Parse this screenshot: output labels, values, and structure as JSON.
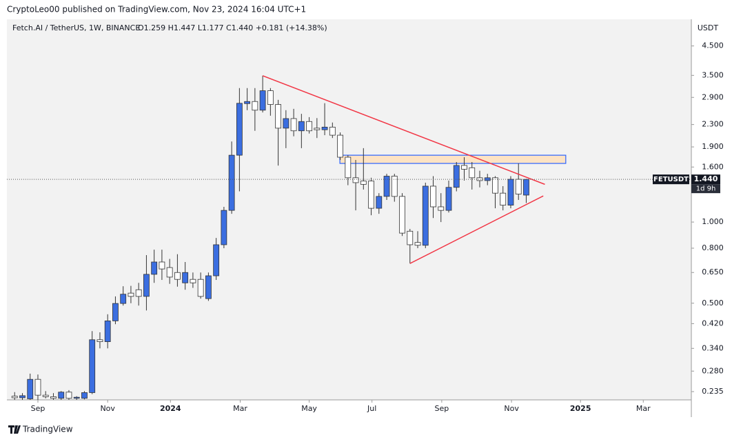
{
  "header": "CryptoLeo00 published on TradingView.com, Nov 23, 2024 16:04 UTC+1",
  "footer": "TradingView",
  "chart_data": {
    "type": "candlestick",
    "title": "Fetch.AI / TetherUS, 1W, BINANCE",
    "legend_ohlc": "O1.259 H1.447 L1.177 C1.440 +0.181 (+14.38%)",
    "currency": "USDT",
    "symbol": "FETUSDT",
    "last_price_label": "1.440",
    "countdown": "1d 9h",
    "up_color": "#3b6ee0",
    "down_color": "#ffffff",
    "log_scale": true,
    "grid": false,
    "open": [
      0.226,
      0.223,
      0.221,
      0.261,
      0.228,
      0.225,
      0.222,
      0.234,
      0.222,
      0.222,
      0.233,
      0.366,
      0.36,
      0.43,
      0.499,
      0.545,
      0.561,
      0.53,
      0.64,
      0.711,
      0.678,
      0.65,
      0.595,
      0.613,
      0.613,
      0.52,
      0.632,
      0.824,
      1.105,
      1.77,
      2.75,
      2.8,
      2.6,
      3.07,
      2.73,
      2.23,
      2.42,
      2.18,
      2.36,
      2.23,
      2.2,
      2.25,
      2.1,
      1.74,
      1.46,
      1.42,
      1.42,
      1.125,
      1.245,
      1.48,
      1.245,
      0.925,
      0.84,
      0.82,
      1.359,
      1.139,
      1.105,
      1.345,
      1.622,
      1.59,
      1.46,
      1.425,
      1.46,
      1.28,
      1.155,
      1.441,
      1.259
    ],
    "high": [
      0.234,
      0.232,
      0.274,
      0.272,
      0.236,
      0.232,
      0.236,
      0.238,
      0.226,
      0.236,
      0.394,
      0.39,
      0.455,
      0.53,
      0.578,
      0.58,
      0.595,
      0.754,
      0.79,
      0.79,
      0.73,
      0.76,
      0.711,
      0.65,
      0.65,
      0.65,
      0.873,
      1.139,
      1.99,
      3.14,
      3.14,
      3.14,
      3.49,
      3.14,
      2.84,
      2.6,
      2.63,
      2.52,
      2.45,
      2.43,
      2.76,
      2.34,
      2.15,
      1.77,
      1.7,
      1.88,
      1.46,
      1.28,
      1.51,
      1.51,
      1.28,
      0.943,
      0.925,
      1.4,
      1.48,
      1.28,
      1.425,
      1.67,
      1.74,
      1.67,
      1.55,
      1.51,
      1.48,
      1.359,
      1.48,
      1.65,
      1.447
    ],
    "low": [
      0.219,
      0.219,
      0.219,
      0.219,
      0.222,
      0.219,
      0.219,
      0.219,
      0.219,
      0.22,
      0.23,
      0.34,
      0.34,
      0.418,
      0.49,
      0.5,
      0.49,
      0.47,
      0.595,
      0.61,
      0.59,
      0.576,
      0.561,
      0.57,
      0.52,
      0.51,
      0.61,
      0.8,
      1.073,
      1.3,
      2.6,
      2.18,
      2.55,
      2.48,
      1.62,
      1.88,
      2.08,
      1.88,
      2.13,
      2.05,
      2.1,
      2.05,
      1.7,
      1.37,
      1.105,
      1.32,
      1.06,
      1.073,
      1.208,
      1.19,
      0.888,
      0.702,
      0.8,
      0.8,
      1.035,
      1.0,
      1.085,
      1.3,
      1.425,
      1.32,
      1.345,
      1.37,
      1.125,
      1.105,
      1.125,
      1.208,
      1.177
    ],
    "close": [
      0.223,
      0.227,
      0.261,
      0.228,
      0.225,
      0.222,
      0.234,
      0.222,
      0.224,
      0.233,
      0.366,
      0.36,
      0.43,
      0.499,
      0.54,
      0.53,
      0.53,
      0.64,
      0.711,
      0.67,
      0.625,
      0.613,
      0.65,
      0.595,
      0.53,
      0.632,
      0.824,
      1.105,
      1.77,
      2.758,
      2.8,
      2.6,
      3.07,
      2.73,
      2.23,
      2.42,
      2.18,
      2.36,
      2.18,
      2.2,
      2.25,
      2.1,
      1.74,
      1.46,
      1.4,
      1.38,
      1.125,
      1.245,
      1.48,
      1.245,
      0.91,
      0.824,
      0.82,
      1.359,
      1.139,
      1.105,
      1.345,
      1.622,
      1.57,
      1.46,
      1.425,
      1.46,
      1.28,
      1.155,
      1.441,
      1.27,
      1.44
    ],
    "xlim": [
      -1,
      87.3
    ],
    "ylim": [
      0.219,
      5.65
    ],
    "xticks": [
      {
        "value": 3.0,
        "label": "Sep"
      },
      {
        "value": 12.0,
        "label": "Nov"
      },
      {
        "value": 20.1,
        "label": "2024",
        "bold": true
      },
      {
        "value": 29.1,
        "label": "Mar"
      },
      {
        "value": 38.0,
        "label": "May"
      },
      {
        "value": 46.1,
        "label": "Jul"
      },
      {
        "value": 55.1,
        "label": "Sep"
      },
      {
        "value": 64.1,
        "label": "Nov"
      },
      {
        "value": 73.0,
        "label": "2025",
        "bold": true
      },
      {
        "value": 81.1,
        "label": "Mar"
      }
    ],
    "yticks": [
      {
        "value": 4.5,
        "label": "4.500"
      },
      {
        "value": 3.5,
        "label": "3.500"
      },
      {
        "value": 2.9,
        "label": "2.900"
      },
      {
        "value": 2.3,
        "label": "2.300"
      },
      {
        "value": 1.9,
        "label": "1.900"
      },
      {
        "value": 1.6,
        "label": "1.600"
      },
      {
        "value": 1.0,
        "label": "1.000"
      },
      {
        "value": 0.8,
        "label": "0.800"
      },
      {
        "value": 0.65,
        "label": "0.650"
      },
      {
        "value": 0.5,
        "label": "0.500"
      },
      {
        "value": 0.42,
        "label": "0.420"
      },
      {
        "value": 0.34,
        "label": "0.340"
      },
      {
        "value": 0.28,
        "label": "0.280"
      },
      {
        "value": 0.235,
        "label": "0.235"
      }
    ],
    "trendlines": [
      {
        "color": "#f23645",
        "x": [
          32,
          68.4
        ],
        "y": [
          3.49,
          1.38
        ]
      },
      {
        "color": "#f23645",
        "x": [
          51,
          68.2
        ],
        "y": [
          0.702,
          1.25
        ]
      }
    ],
    "zones": [
      {
        "border": "#2962ff",
        "fill": "#fde3c4",
        "x": [
          41.96,
          71.1
        ],
        "y": [
          1.65,
          1.77
        ]
      }
    ]
  }
}
